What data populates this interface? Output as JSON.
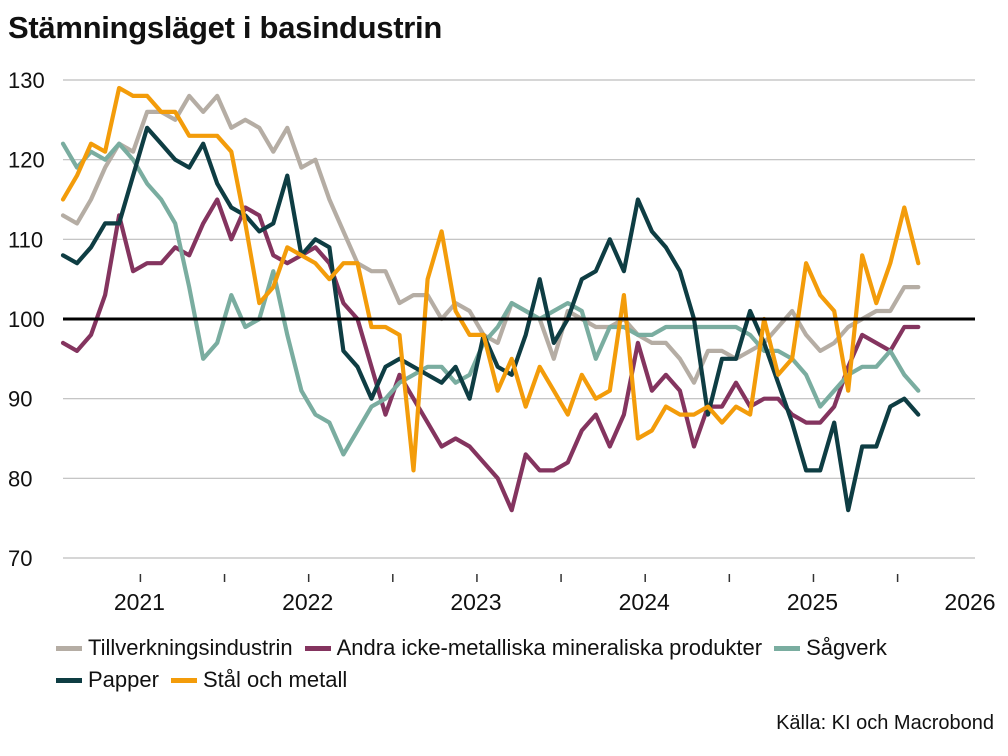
{
  "chart_data": {
    "type": "line",
    "title": "Stämningsläget i basindustrin",
    "source": "Källa: KI och Macrobond",
    "xlabel": "",
    "ylabel": "",
    "ylim": [
      70,
      130
    ],
    "yticks": [
      70,
      80,
      90,
      100,
      110,
      120,
      130
    ],
    "xlim": [
      2020.54,
      2025.96
    ],
    "xtick_labels": [
      "2021",
      "2022",
      "2023",
      "2024",
      "2025",
      "2026"
    ],
    "reference_line": 100,
    "grid": true,
    "start": 2020.54,
    "step": 0.08333,
    "series": [
      {
        "name": "Tillverkningsindustrin",
        "color": "#b5ada4",
        "values": [
          113,
          112,
          115,
          119,
          122,
          121,
          126,
          126,
          125,
          128,
          126,
          128,
          124,
          125,
          124,
          121,
          124,
          119,
          120,
          115,
          111,
          107,
          106,
          106,
          102,
          103,
          103,
          100,
          102,
          101,
          98,
          97,
          102,
          101,
          100,
          95,
          101,
          100,
          99,
          99,
          100,
          98,
          97,
          97,
          95,
          92,
          96,
          96,
          95,
          96,
          97,
          99,
          101,
          98,
          96,
          97,
          99,
          100,
          101,
          101,
          104,
          104
        ]
      },
      {
        "name": "Andra icke-metalliska mineraliska produkter",
        "color": "#84345f",
        "values": [
          97,
          96,
          98,
          103,
          113,
          106,
          107,
          107,
          109,
          108,
          112,
          115,
          110,
          114,
          113,
          108,
          107,
          108,
          109,
          107,
          102,
          100,
          94,
          88,
          93,
          90,
          87,
          84,
          85,
          84,
          82,
          80,
          76,
          83,
          81,
          81,
          82,
          86,
          88,
          84,
          88,
          97,
          91,
          93,
          91,
          84,
          89,
          89,
          92,
          89,
          90,
          90,
          88,
          87,
          87,
          89,
          94,
          98,
          97,
          96,
          99,
          99
        ]
      },
      {
        "name": "Sågverk",
        "color": "#7aada0",
        "values": [
          122,
          119,
          121,
          120,
          122,
          120,
          117,
          115,
          112,
          104,
          95,
          97,
          103,
          99,
          100,
          106,
          98,
          91,
          88,
          87,
          83,
          86,
          89,
          90,
          92,
          93,
          94,
          94,
          92,
          93,
          97,
          99,
          102,
          101,
          100,
          101,
          102,
          101,
          95,
          99,
          99,
          98,
          98,
          99,
          99,
          99,
          99,
          99,
          99,
          98,
          96,
          96,
          95,
          93,
          89,
          91,
          93,
          94,
          94,
          96,
          93,
          91
        ]
      },
      {
        "name": "Papper",
        "color": "#0e3d43",
        "values": [
          108,
          107,
          109,
          112,
          112,
          118,
          124,
          122,
          120,
          119,
          122,
          117,
          114,
          113,
          111,
          112,
          118,
          108,
          110,
          109,
          96,
          94,
          90,
          94,
          95,
          94,
          93,
          92,
          94,
          90,
          98,
          94,
          93,
          98,
          105,
          97,
          100,
          105,
          106,
          110,
          106,
          115,
          111,
          109,
          106,
          100,
          88,
          95,
          95,
          101,
          97,
          92,
          87,
          81,
          81,
          87,
          76,
          84,
          84,
          89,
          90,
          88
        ]
      },
      {
        "name": "Stål och metall",
        "color": "#f39c0a",
        "values": [
          115,
          118,
          122,
          121,
          129,
          128,
          128,
          126,
          126,
          123,
          123,
          123,
          121,
          112,
          102,
          104,
          109,
          108,
          107,
          105,
          107,
          107,
          99,
          99,
          98,
          81,
          105,
          111,
          101,
          98,
          98,
          91,
          95,
          89,
          94,
          91,
          88,
          93,
          90,
          91,
          103,
          85,
          86,
          89,
          88,
          88,
          89,
          87,
          89,
          88,
          100,
          93,
          95,
          107,
          103,
          101,
          91,
          108,
          102,
          107,
          114,
          107
        ]
      }
    ]
  }
}
